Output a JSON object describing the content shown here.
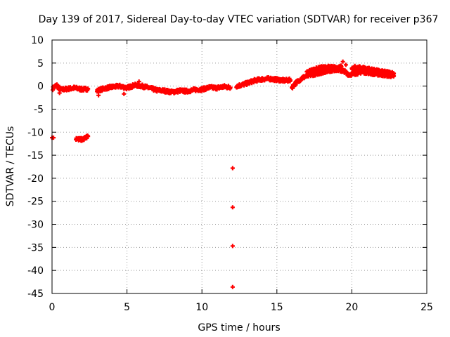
{
  "chart_data": {
    "type": "scatter",
    "title": "Day 139 of 2017, Sidereal Day-to-day VTEC variation (SDTVAR) for receiver p367",
    "xlabel": "GPS time / hours",
    "ylabel": "SDTVAR / TECUs",
    "xlim": [
      0,
      25
    ],
    "ylim": [
      -45,
      10
    ],
    "xticks": [
      0,
      5,
      10,
      15,
      20,
      25
    ],
    "yticks": [
      10,
      5,
      0,
      -5,
      -10,
      -15,
      -20,
      -25,
      -30,
      -35,
      -40,
      -45
    ],
    "grid": true,
    "color": "#ff0000",
    "marker": "plus",
    "series": [
      {
        "name": "SDTVAR",
        "dense_segments": [
          {
            "x": [
              0.05,
              0.3,
              0.6,
              1.0,
              1.5,
              2.0,
              2.4
            ],
            "y": [
              -0.5,
              0.2,
              -0.8,
              -0.6,
              -0.4,
              -0.7,
              -0.6
            ]
          },
          {
            "x": [
              3.0,
              3.5,
              4.0,
              4.5,
              5.0,
              5.5,
              6.0,
              6.5,
              7.0,
              7.5,
              8.0,
              8.5,
              9.0,
              9.5,
              10.0,
              10.5,
              11.0,
              11.5,
              11.9
            ],
            "y": [
              -1.0,
              -0.5,
              -0.2,
              0.0,
              -0.4,
              0.2,
              0.0,
              -0.4,
              -0.9,
              -1.0,
              -1.3,
              -1.0,
              -1.1,
              -0.8,
              -0.7,
              -0.3,
              -0.4,
              -0.1,
              -0.3
            ]
          },
          {
            "x": [
              12.3,
              12.7,
              13.0,
              13.5,
              14.0,
              14.5,
              15.0,
              15.5,
              15.9
            ],
            "y": [
              0.0,
              0.3,
              0.6,
              1.2,
              1.5,
              1.6,
              1.4,
              1.2,
              1.3
            ]
          },
          {
            "x": [
              16.0,
              16.3,
              16.7,
              17.0,
              17.5,
              18.0,
              18.5,
              19.0,
              19.5,
              19.8,
              20.0,
              20.3,
              20.7,
              21.0,
              21.5,
              22.0,
              22.5,
              22.8
            ],
            "y": [
              -0.3,
              0.8,
              1.8,
              2.2,
              2.6,
              3.0,
              3.4,
              3.6,
              3.2,
              2.5,
              2.6,
              2.8,
              3.1,
              3.0,
              2.7,
              2.5,
              2.3,
              2.2
            ]
          },
          {
            "x": [
              17.0,
              17.5,
              18.0,
              18.5,
              19.0,
              19.3
            ],
            "y": [
              3.0,
              3.6,
              4.0,
              4.1,
              4.0,
              4.2
            ]
          },
          {
            "x": [
              20.0,
              20.5,
              21.0,
              21.5,
              22.0,
              22.5,
              22.8
            ],
            "y": [
              3.6,
              4.0,
              3.8,
              3.4,
              3.1,
              2.9,
              2.7
            ]
          },
          {
            "x": [
              1.6,
              1.8,
              2.0,
              2.2,
              2.4
            ],
            "y": [
              -11.3,
              -11.6,
              -11.6,
              -11.3,
              -10.9
            ]
          }
        ],
        "points": [
          {
            "x": 0.0,
            "y": -11.2
          },
          {
            "x": 0.1,
            "y": -11.2
          },
          {
            "x": 0.5,
            "y": -1.5
          },
          {
            "x": 0.45,
            "y": -0.7
          },
          {
            "x": 3.1,
            "y": -2.0
          },
          {
            "x": 4.8,
            "y": -1.7
          },
          {
            "x": 5.8,
            "y": 1.0
          },
          {
            "x": 19.4,
            "y": 5.3
          },
          {
            "x": 19.6,
            "y": 4.6
          },
          {
            "x": 20.2,
            "y": 4.4
          },
          {
            "x": 12.05,
            "y": -17.8
          },
          {
            "x": 12.05,
            "y": -26.3
          },
          {
            "x": 12.05,
            "y": -34.7
          },
          {
            "x": 12.05,
            "y": -43.6
          }
        ]
      }
    ]
  }
}
